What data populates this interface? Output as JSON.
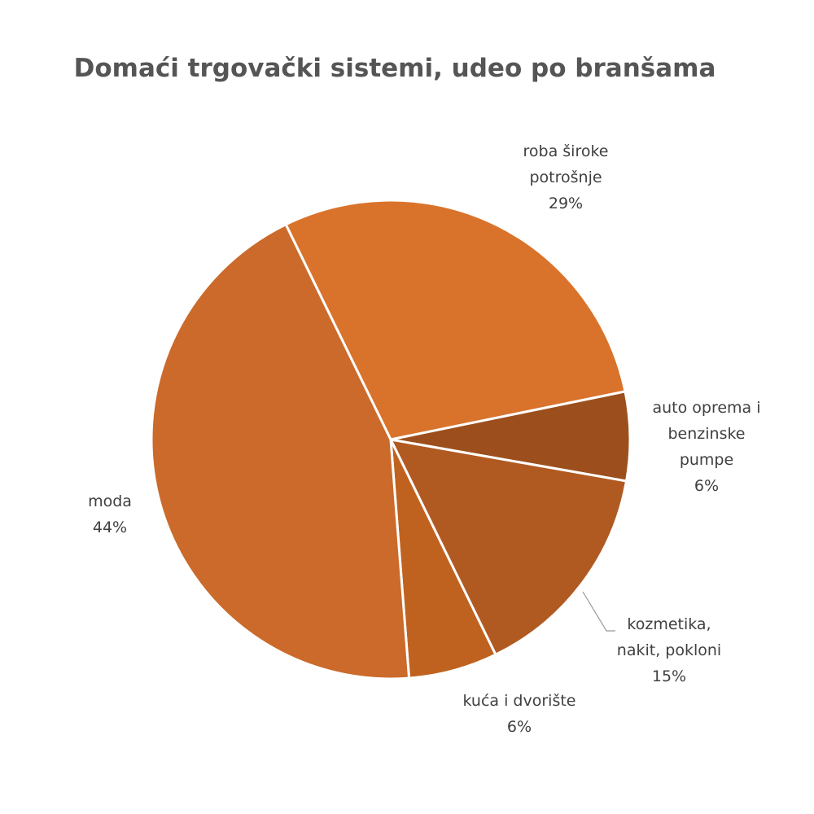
{
  "chart_data": {
    "type": "pie",
    "title": "Domaći trgovački sistemi, udeo po branšama",
    "categories": [
      "roba široke potrošnje",
      "auto oprema i benzinske pumpe",
      "kozmetika, nakit, pokloni",
      "kuća i dvorište",
      "moda"
    ],
    "values": [
      29,
      6,
      15,
      6,
      44
    ],
    "value_labels": [
      "29%",
      "6%",
      "15%",
      "6%",
      "44%"
    ],
    "colors": [
      "#D9732C",
      "#9C4F1C",
      "#B05A22",
      "#C0621F",
      "#CB6A2A"
    ]
  }
}
